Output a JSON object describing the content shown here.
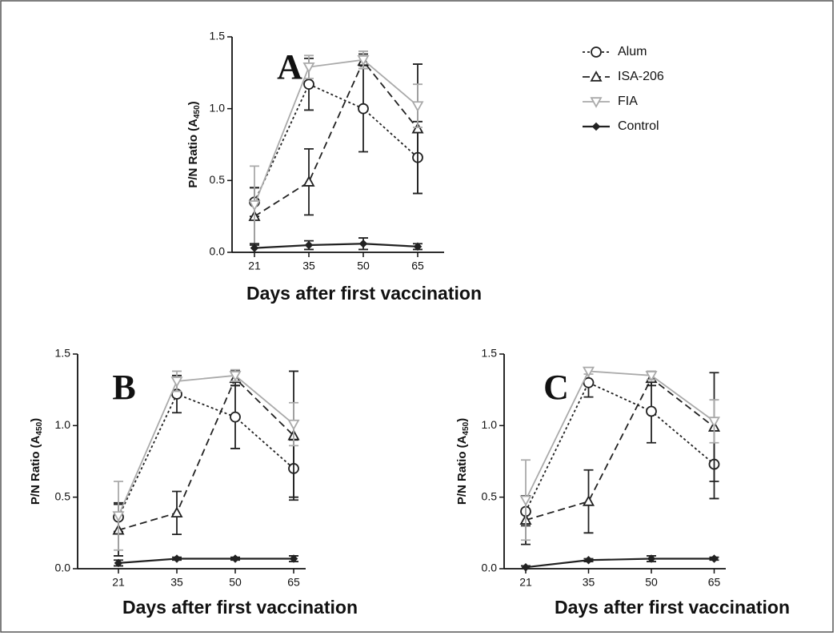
{
  "chart_data": [
    {
      "type": "line",
      "panel": "A",
      "xlabel": "Days after first vaccination",
      "ylabel": [
        "P/N Ratio (A",
        "450",
        ")"
      ],
      "categories": [
        "21",
        "35",
        "50",
        "65"
      ],
      "ylim": [
        0,
        1.5
      ],
      "yticks": [
        {
          "value": 0,
          "label": "0.0"
        },
        0.5,
        {
          "value": 1,
          "label": "1.0"
        },
        1.5
      ],
      "series": [
        {
          "name": "Alum",
          "color": "#222222",
          "dash": "dotted",
          "marker": "circle",
          "values": [
            0.35,
            1.17,
            1.0,
            0.66
          ],
          "errors": [
            0.1,
            0.18,
            0.3,
            0.25
          ]
        },
        {
          "name": "ISA-206",
          "color": "#222222",
          "dash": "dashed",
          "marker": "triangle-up",
          "values": [
            0.25,
            0.49,
            1.33,
            0.86
          ],
          "errors": [
            0.2,
            0.23,
            0.05,
            0.45
          ]
        },
        {
          "name": "FIA",
          "color": "#aaaaaa",
          "dash": "solid",
          "marker": "triangle-down",
          "values": [
            0.33,
            1.29,
            1.34,
            1.02
          ],
          "errors": [
            0.27,
            0.08,
            0.06,
            0.15
          ]
        },
        {
          "name": "Control",
          "color": "#222222",
          "dash": "solid",
          "marker": "diamond",
          "values": [
            0.03,
            0.05,
            0.06,
            0.04
          ],
          "errors": [
            0.03,
            0.03,
            0.04,
            0.02
          ]
        }
      ]
    },
    {
      "type": "line",
      "panel": "B",
      "xlabel": "Days after first vaccination",
      "ylabel": [
        "P/N Ratio (A",
        "450",
        ")"
      ],
      "categories": [
        "21",
        "35",
        "50",
        "65"
      ],
      "ylim": [
        0,
        1.5
      ],
      "yticks": [
        {
          "value": 0,
          "label": "0.0"
        },
        0.5,
        {
          "value": 1,
          "label": "1.0"
        },
        1.5
      ],
      "series": [
        {
          "color": "#222222",
          "dash": "dotted",
          "marker": "circle",
          "values": [
            0.36,
            1.22,
            1.06,
            0.7
          ],
          "errors": [
            0.1,
            0.13,
            0.22,
            0.2
          ]
        },
        {
          "color": "#222222",
          "dash": "dashed",
          "marker": "triangle-up",
          "values": [
            0.27,
            0.39,
            1.33,
            0.93
          ],
          "errors": [
            0.18,
            0.15,
            0.05,
            0.45
          ]
        },
        {
          "color": "#aaaaaa",
          "dash": "solid",
          "marker": "triangle-down",
          "values": [
            0.37,
            1.31,
            1.35,
            1.01
          ],
          "errors": [
            0.24,
            0.07,
            0.04,
            0.15
          ]
        },
        {
          "color": "#222222",
          "dash": "solid",
          "marker": "diamond",
          "values": [
            0.04,
            0.07,
            0.07,
            0.07
          ],
          "errors": [
            0.02,
            0.01,
            0.01,
            0.02
          ]
        }
      ]
    },
    {
      "type": "line",
      "panel": "C",
      "xlabel": "Days after first vaccination",
      "ylabel": [
        "P/N Ratio (A",
        "450",
        ")"
      ],
      "categories": [
        "21",
        "35",
        "50",
        "65"
      ],
      "ylim": [
        0,
        1.5
      ],
      "yticks": [
        {
          "value": 0,
          "label": "0.0"
        },
        0.5,
        {
          "value": 1,
          "label": "1.0"
        },
        1.5
      ],
      "series": [
        {
          "color": "#222222",
          "dash": "dotted",
          "marker": "circle",
          "values": [
            0.4,
            1.3,
            1.1,
            0.73
          ],
          "errors": [
            0.1,
            0.1,
            0.22,
            0.24
          ]
        },
        {
          "color": "#222222",
          "dash": "dashed",
          "marker": "triangle-up",
          "values": [
            0.34,
            0.47,
            1.33,
            0.99
          ],
          "errors": [
            0.17,
            0.22,
            0.05,
            0.38
          ]
        },
        {
          "color": "#aaaaaa",
          "dash": "solid",
          "marker": "triangle-down",
          "values": [
            0.48,
            1.38,
            1.35,
            1.03
          ],
          "errors": [
            0.28,
            0.02,
            0.03,
            0.15
          ]
        },
        {
          "color": "#222222",
          "dash": "solid",
          "marker": "diamond",
          "values": [
            0.01,
            0.06,
            0.07,
            0.07
          ],
          "errors": [
            0.01,
            0.01,
            0.02,
            0.01
          ]
        }
      ]
    }
  ]
}
